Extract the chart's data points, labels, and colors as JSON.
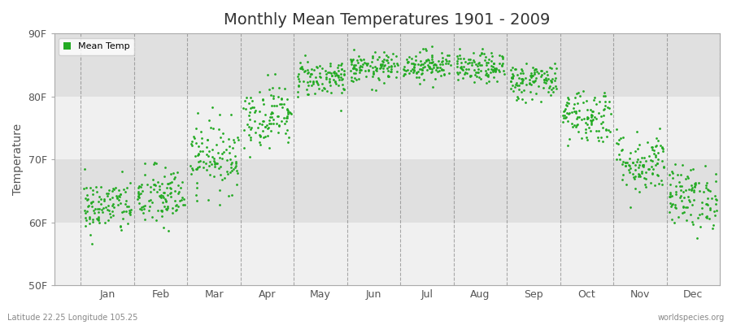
{
  "title": "Monthly Mean Temperatures 1901 - 2009",
  "ylabel": "Temperature",
  "ylim": [
    50,
    90
  ],
  "yticks": [
    50,
    60,
    70,
    80,
    90
  ],
  "ytick_labels": [
    "50F",
    "60F",
    "70F",
    "80F",
    "90F"
  ],
  "month_labels": [
    "Jan",
    "Feb",
    "Mar",
    "Apr",
    "May",
    "Jun",
    "Jul",
    "Aug",
    "Sep",
    "Oct",
    "Nov",
    "Dec"
  ],
  "dot_color": "#22aa22",
  "dot_size": 4,
  "bg_light": "#f0f0f0",
  "bg_dark": "#e0e0e0",
  "figure_background": "#ffffff",
  "legend_label": "Mean Temp",
  "footer_left": "Latitude 22.25 Longitude 105.25",
  "footer_right": "worldspecies.org",
  "n_years": 109,
  "mean_temps": [
    62.5,
    64.0,
    70.5,
    77.0,
    83.0,
    84.5,
    85.0,
    84.5,
    82.5,
    77.0,
    69.5,
    64.0
  ],
  "std_temps": [
    2.2,
    2.5,
    2.8,
    2.5,
    1.5,
    1.2,
    1.2,
    1.2,
    1.5,
    2.2,
    2.5,
    2.5
  ],
  "seed": 42
}
